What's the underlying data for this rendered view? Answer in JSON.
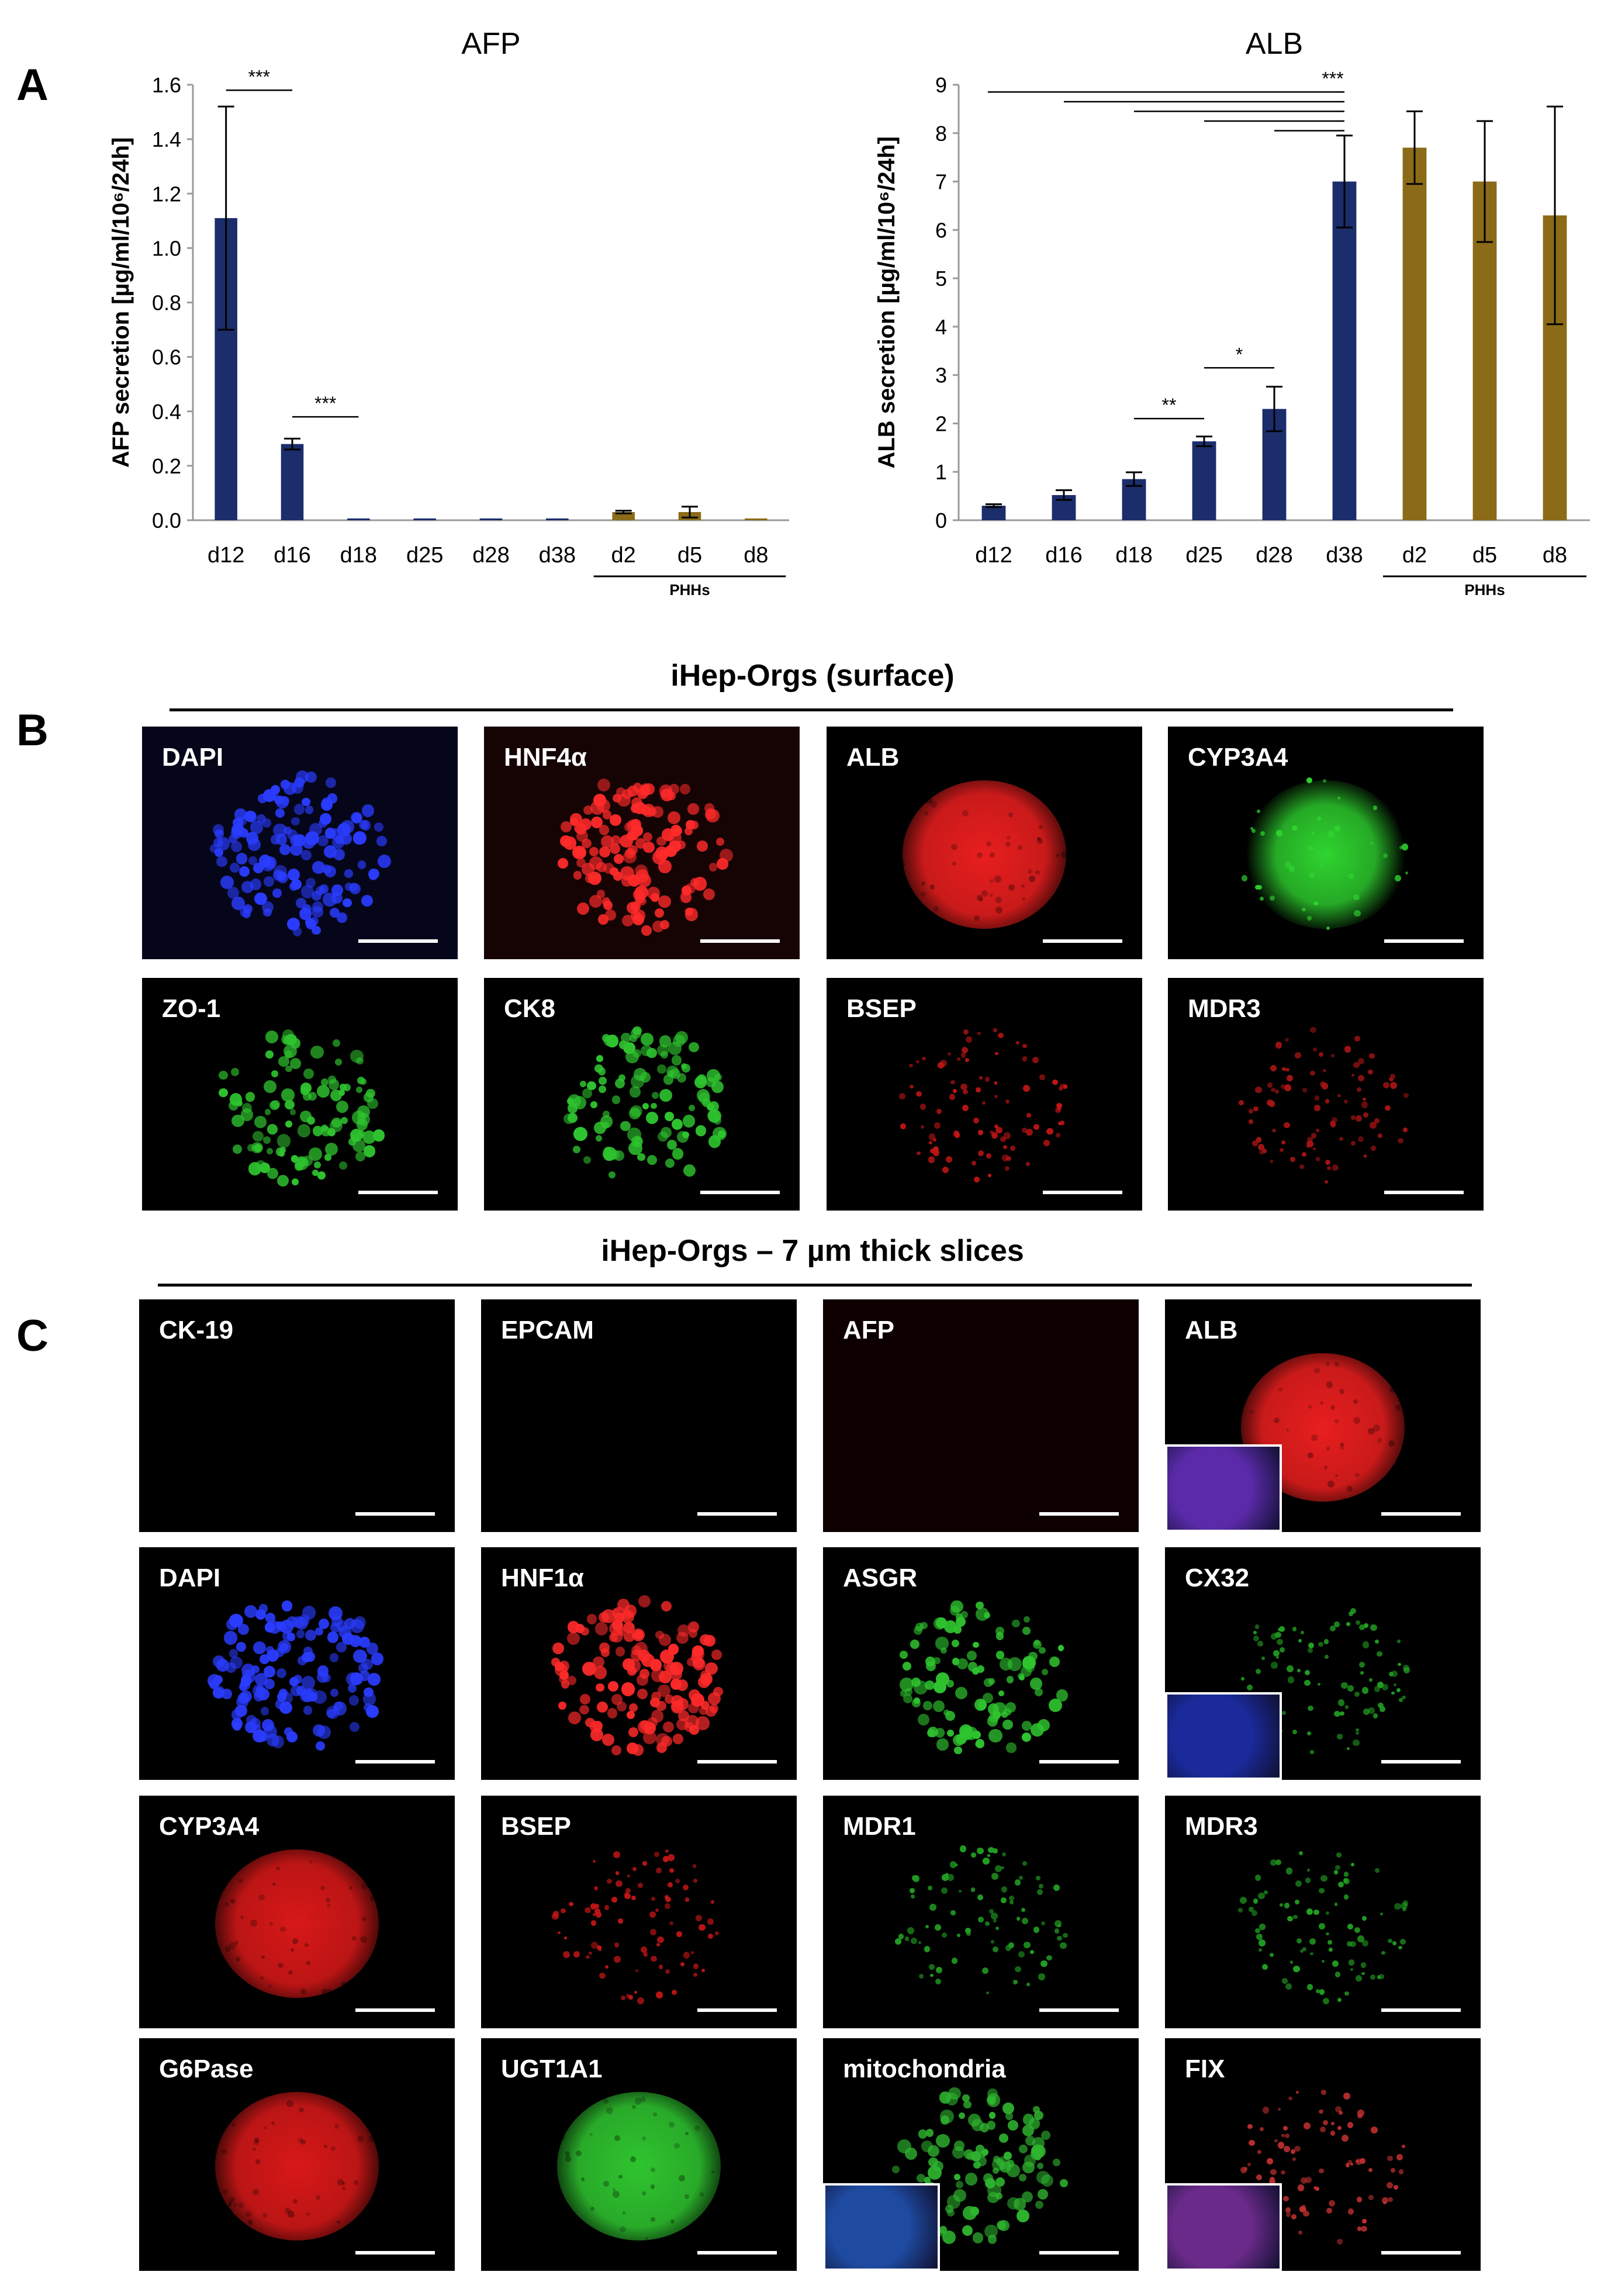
{
  "panel_a": {
    "letter": "A",
    "charts": [
      {
        "type": "bar",
        "title": "AFP",
        "ylabel": "AFP secretion [µg/ml/10⁶/24h]",
        "ylim": [
          0,
          1.6
        ],
        "yticks": [
          "0.0",
          "0.2",
          "0.4",
          "0.6",
          "0.8",
          "1.0",
          "1.2",
          "1.4",
          "1.6"
        ],
        "categories": [
          "d12",
          "d16",
          "d18",
          "d25",
          "d28",
          "d38",
          "d2",
          "d5",
          "d8"
        ],
        "values": [
          1.11,
          0.28,
          0.0,
          0.0,
          0.0,
          0.0,
          0.03,
          0.03,
          0.0
        ],
        "errors": [
          0.41,
          0.02,
          0.0,
          0.0,
          0.0,
          0.0,
          0.005,
          0.02,
          0.0
        ],
        "groups": [
          "iHep",
          "iHep",
          "iHep",
          "iHep",
          "iHep",
          "iHep",
          "PHH",
          "PHH",
          "PHH"
        ],
        "group_label": "PHHs",
        "colors": {
          "iHep": "#1b2d6b",
          "PHH": "#8b6b18"
        },
        "significance": [
          {
            "from": 0,
            "to": 1,
            "label": "***",
            "y": 1.58
          },
          {
            "from": 1,
            "to": 2,
            "label": "***",
            "y": 0.38
          }
        ]
      },
      {
        "type": "bar",
        "title": "ALB",
        "ylabel": "ALB secretion [µg/ml/10⁶/24h]",
        "ylim": [
          0,
          9
        ],
        "yticks": [
          "0",
          "1",
          "2",
          "3",
          "4",
          "5",
          "6",
          "7",
          "8",
          "9"
        ],
        "categories": [
          "d12",
          "d16",
          "d18",
          "d25",
          "d28",
          "d38",
          "d2",
          "d5",
          "d8"
        ],
        "values": [
          0.3,
          0.52,
          0.85,
          1.63,
          2.3,
          7.0,
          7.7,
          7.0,
          6.3
        ],
        "errors": [
          0.03,
          0.1,
          0.14,
          0.1,
          0.46,
          0.95,
          0.75,
          1.25,
          2.25
        ],
        "groups": [
          "iHep",
          "iHep",
          "iHep",
          "iHep",
          "iHep",
          "iHep",
          "PHH",
          "PHH",
          "PHH"
        ],
        "group_label": "PHHs",
        "colors": {
          "iHep": "#1b2d6b",
          "PHH": "#8b6b18"
        },
        "significance": [
          {
            "from": 2,
            "to": 3,
            "label": "**",
            "y": 2.1
          },
          {
            "from": 3,
            "to": 4,
            "label": "*",
            "y": 3.15
          },
          {
            "from": 0,
            "to": 5,
            "label": "***",
            "y": 8.85
          },
          {
            "from": 1,
            "to": 5,
            "label": "",
            "y": 8.65
          },
          {
            "from": 2,
            "to": 5,
            "label": "",
            "y": 8.45
          },
          {
            "from": 3,
            "to": 5,
            "label": "",
            "y": 8.25
          },
          {
            "from": 4,
            "to": 5,
            "label": "",
            "y": 8.05
          }
        ]
      }
    ]
  },
  "panel_b": {
    "letter": "B",
    "title": "iHep-Orgs (surface)",
    "tiles": [
      {
        "label": "DAPI",
        "color": "#2a3cff",
        "bg": "#06061a",
        "shape": "dots"
      },
      {
        "label": "HNF4α",
        "color": "#ff2a2a",
        "bg": "#160404",
        "shape": "dots"
      },
      {
        "label": "ALB",
        "color": "#e81e1e",
        "bg": "#000000",
        "shape": "solid"
      },
      {
        "label": "CYP3A4",
        "color": "#2fd42f",
        "bg": "#000000",
        "shape": "glow"
      },
      {
        "label": "ZO-1",
        "color": "#2fc42f",
        "bg": "#000000",
        "shape": "mesh"
      },
      {
        "label": "CK8",
        "color": "#2fc42f",
        "bg": "#000000",
        "shape": "mesh"
      },
      {
        "label": "BSEP",
        "color": "#c41616",
        "bg": "#000000",
        "shape": "sparse"
      },
      {
        "label": "MDR3",
        "color": "#a81414",
        "bg": "#000000",
        "shape": "sparse"
      }
    ]
  },
  "panel_c": {
    "letter": "C",
    "title": "iHep-Orgs – 7 µm thick slices",
    "tiles": [
      {
        "label": "CK-19",
        "color": "#0a0a0a",
        "bg": "#000000",
        "shape": "none",
        "inset": false
      },
      {
        "label": "EPCAM",
        "color": "#0a0a0a",
        "bg": "#000000",
        "shape": "none",
        "inset": false
      },
      {
        "label": "AFP",
        "color": "#1a0000",
        "bg": "#0e0000",
        "shape": "none",
        "inset": false
      },
      {
        "label": "ALB",
        "color": "#e81e1e",
        "bg": "#000000",
        "shape": "solid",
        "inset": true,
        "inset_color": "#5a2aa8"
      },
      {
        "label": "DAPI",
        "color": "#2a3cff",
        "bg": "#000000",
        "shape": "dots",
        "inset": false
      },
      {
        "label": "HNF1α",
        "color": "#ff2a2a",
        "bg": "#000000",
        "shape": "dots",
        "inset": false
      },
      {
        "label": "ASGR",
        "color": "#2fc42f",
        "bg": "#000000",
        "shape": "mesh",
        "inset": false
      },
      {
        "label": "CX32",
        "color": "#22a022",
        "bg": "#000000",
        "shape": "sparse",
        "inset": true,
        "inset_color": "#1a2a9a"
      },
      {
        "label": "CYP3A4",
        "color": "#d81818",
        "bg": "#000000",
        "shape": "solid",
        "inset": false
      },
      {
        "label": "BSEP",
        "color": "#c41616",
        "bg": "#000000",
        "shape": "sparse",
        "inset": false
      },
      {
        "label": "MDR1",
        "color": "#22a022",
        "bg": "#000000",
        "shape": "sparse",
        "inset": false
      },
      {
        "label": "MDR3",
        "color": "#22a022",
        "bg": "#000000",
        "shape": "sparse",
        "inset": false
      },
      {
        "label": "G6Pase",
        "color": "#d81818",
        "bg": "#000000",
        "shape": "solid",
        "inset": false
      },
      {
        "label": "UGT1A1",
        "color": "#2fc42f",
        "bg": "#000000",
        "shape": "solid",
        "inset": false
      },
      {
        "label": "mitochondria",
        "color": "#2fb42f",
        "bg": "#000000",
        "shape": "mesh",
        "inset": true,
        "inset_color": "#1e4aa0"
      },
      {
        "label": "FIX",
        "color": "#c03030",
        "bg": "#000000",
        "shape": "sparse",
        "inset": true,
        "inset_color": "#6a2a8a"
      }
    ]
  }
}
